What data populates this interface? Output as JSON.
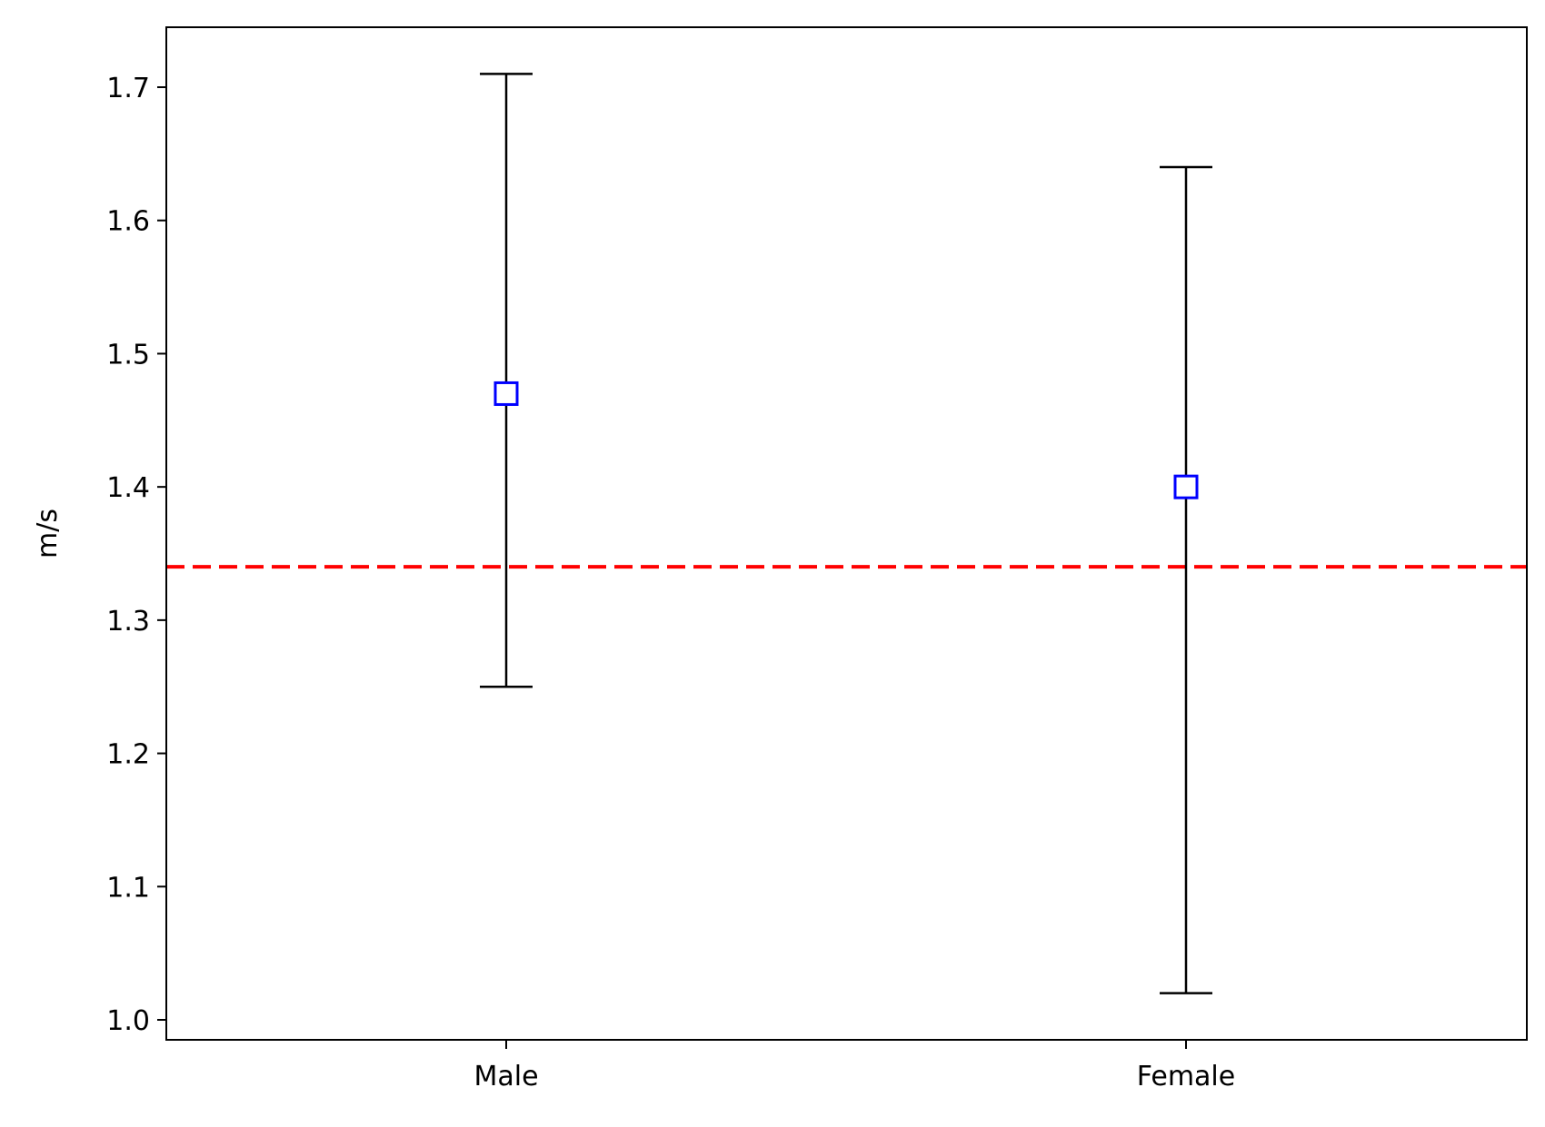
{
  "chart_data": {
    "type": "errorbar",
    "title": "",
    "xlabel": "",
    "ylabel": "m/s",
    "categories": [
      "Male",
      "Female"
    ],
    "series": [
      {
        "values": [
          1.47,
          1.4
        ],
        "lower": [
          1.25,
          1.02
        ],
        "upper": [
          1.71,
          1.64
        ],
        "marker": "square",
        "marker_color": "#0000ff",
        "error_color": "#000000"
      }
    ],
    "reference_line": {
      "y": 1.34,
      "color": "#ff0000",
      "style": "dashed"
    },
    "ylim": [
      0.985,
      1.745
    ],
    "yticks": [
      1.0,
      1.1,
      1.2,
      1.3,
      1.4,
      1.5,
      1.6,
      1.7
    ],
    "ytick_labels": [
      "1.0",
      "1.1",
      "1.2",
      "1.3",
      "1.4",
      "1.5",
      "1.6",
      "1.7"
    ],
    "grid": false,
    "legend": "none"
  }
}
